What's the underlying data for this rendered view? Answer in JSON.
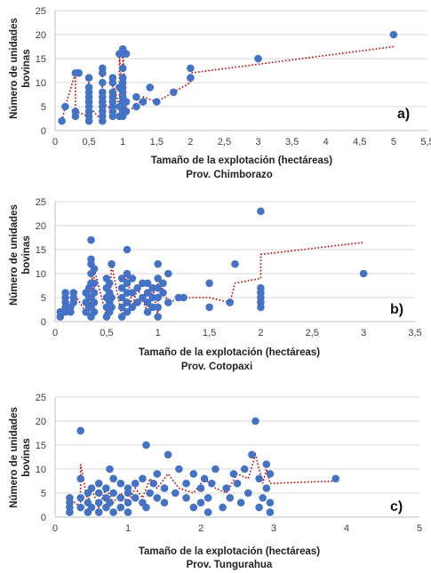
{
  "colors": {
    "point": "#4472C4",
    "trend": "#C00000",
    "grid": "#D9D9D9",
    "axis": "#BFBFBF"
  },
  "chart_data": [
    {
      "type": "scatter",
      "panel_label": "a)",
      "xlabel": "Tamaño de la explotación (hectáreas)",
      "subtitle": "Prov. Chimborazo",
      "ylabel": [
        "Número de unidades",
        "bovinas"
      ],
      "xlim": [
        0,
        5.5
      ],
      "ylim": [
        0,
        25
      ],
      "xticks": [
        0,
        0.5,
        1,
        1.5,
        2,
        2.5,
        3,
        3.5,
        4,
        4.5,
        5,
        5.5
      ],
      "xtick_labels": [
        "0",
        "0,5",
        "1",
        "1,5",
        "2",
        "2,5",
        "3",
        "3,5",
        "4",
        "4,5",
        "5",
        "5,5"
      ],
      "yticks": [
        0,
        5,
        10,
        15,
        20,
        25
      ],
      "ytick_labels": [
        "0",
        "5",
        "10",
        "15",
        "20",
        "25"
      ],
      "grid": "horizontal",
      "points": [
        [
          0.1,
          2
        ],
        [
          0.15,
          5
        ],
        [
          0.3,
          3
        ],
        [
          0.3,
          4
        ],
        [
          0.3,
          12
        ],
        [
          0.35,
          12
        ],
        [
          0.5,
          2
        ],
        [
          0.5,
          3
        ],
        [
          0.5,
          4
        ],
        [
          0.5,
          5
        ],
        [
          0.5,
          6
        ],
        [
          0.5,
          7
        ],
        [
          0.5,
          8
        ],
        [
          0.5,
          9
        ],
        [
          0.5,
          11
        ],
        [
          0.7,
          2
        ],
        [
          0.7,
          3
        ],
        [
          0.7,
          4
        ],
        [
          0.7,
          5
        ],
        [
          0.7,
          6
        ],
        [
          0.7,
          7
        ],
        [
          0.7,
          8
        ],
        [
          0.7,
          10
        ],
        [
          0.7,
          12
        ],
        [
          0.7,
          13
        ],
        [
          0.85,
          3
        ],
        [
          0.85,
          4
        ],
        [
          0.85,
          5
        ],
        [
          0.85,
          6
        ],
        [
          0.85,
          7
        ],
        [
          0.85,
          8
        ],
        [
          0.85,
          10
        ],
        [
          0.85,
          11
        ],
        [
          0.95,
          3
        ],
        [
          0.95,
          5
        ],
        [
          0.95,
          9
        ],
        [
          0.95,
          16
        ],
        [
          1,
          3
        ],
        [
          1,
          4
        ],
        [
          1,
          5
        ],
        [
          1,
          6
        ],
        [
          1,
          7
        ],
        [
          1,
          8
        ],
        [
          1,
          9
        ],
        [
          1,
          10
        ],
        [
          1,
          11
        ],
        [
          1,
          13
        ],
        [
          1,
          16
        ],
        [
          1,
          17
        ],
        [
          1.05,
          4
        ],
        [
          1.05,
          6
        ],
        [
          1.05,
          16
        ],
        [
          1.2,
          5
        ],
        [
          1.2,
          7
        ],
        [
          1.3,
          6
        ],
        [
          1.4,
          9
        ],
        [
          1.5,
          6
        ],
        [
          1.75,
          8
        ],
        [
          2,
          11
        ],
        [
          2,
          13
        ],
        [
          3,
          15
        ],
        [
          5,
          20
        ]
      ],
      "trend": [
        [
          0.1,
          2
        ],
        [
          0.15,
          5
        ],
        [
          0.3,
          12
        ],
        [
          0.3,
          4
        ],
        [
          0.5,
          3
        ],
        [
          0.5,
          11
        ],
        [
          0.5,
          5
        ],
        [
          0.7,
          2
        ],
        [
          0.7,
          13
        ],
        [
          0.7,
          6
        ],
        [
          0.85,
          4
        ],
        [
          0.85,
          10
        ],
        [
          0.95,
          5
        ],
        [
          0.95,
          16
        ],
        [
          1,
          3
        ],
        [
          1,
          17
        ],
        [
          1.05,
          4
        ],
        [
          1.2,
          5
        ],
        [
          1.3,
          7
        ],
        [
          1.5,
          6
        ],
        [
          1.75,
          8
        ],
        [
          2,
          10
        ],
        [
          2,
          12
        ],
        [
          5,
          17.5
        ]
      ]
    },
    {
      "type": "scatter",
      "panel_label": "b)",
      "xlabel": "Tamaño de la explotación (hectáreas)",
      "subtitle": "Prov. Cotopaxi",
      "ylabel": [
        "Número de unidades",
        "bovinas"
      ],
      "xlim": [
        0,
        3.5
      ],
      "ylim": [
        0,
        25
      ],
      "xticks": [
        0,
        0.5,
        1,
        1.5,
        2,
        2.5,
        3,
        3.5
      ],
      "xtick_labels": [
        "0",
        "0,5",
        "1",
        "1,5",
        "2",
        "2,5",
        "3",
        "3,5"
      ],
      "yticks": [
        0,
        5,
        10,
        15,
        20,
        25
      ],
      "ytick_labels": [
        "0",
        "5",
        "10",
        "15",
        "20",
        "25"
      ],
      "grid": "horizontal",
      "points": [
        [
          0.05,
          1
        ],
        [
          0.05,
          2
        ],
        [
          0.1,
          2
        ],
        [
          0.1,
          3
        ],
        [
          0.1,
          4
        ],
        [
          0.1,
          5
        ],
        [
          0.1,
          6
        ],
        [
          0.15,
          2
        ],
        [
          0.15,
          3
        ],
        [
          0.18,
          4
        ],
        [
          0.18,
          5
        ],
        [
          0.18,
          6
        ],
        [
          0.3,
          2
        ],
        [
          0.3,
          4
        ],
        [
          0.3,
          6
        ],
        [
          0.33,
          3
        ],
        [
          0.33,
          5
        ],
        [
          0.33,
          7
        ],
        [
          0.35,
          1
        ],
        [
          0.35,
          3
        ],
        [
          0.35,
          5
        ],
        [
          0.35,
          8
        ],
        [
          0.35,
          10
        ],
        [
          0.35,
          12
        ],
        [
          0.35,
          13
        ],
        [
          0.35,
          17
        ],
        [
          0.38,
          2
        ],
        [
          0.38,
          4
        ],
        [
          0.38,
          6
        ],
        [
          0.38,
          8
        ],
        [
          0.38,
          11
        ],
        [
          0.5,
          1
        ],
        [
          0.5,
          3
        ],
        [
          0.5,
          5
        ],
        [
          0.5,
          7
        ],
        [
          0.5,
          9
        ],
        [
          0.53,
          2
        ],
        [
          0.53,
          4
        ],
        [
          0.53,
          6
        ],
        [
          0.53,
          8
        ],
        [
          0.55,
          3
        ],
        [
          0.55,
          5
        ],
        [
          0.55,
          12
        ],
        [
          0.65,
          1
        ],
        [
          0.65,
          3
        ],
        [
          0.65,
          5
        ],
        [
          0.65,
          7
        ],
        [
          0.65,
          9
        ],
        [
          0.7,
          2
        ],
        [
          0.7,
          4
        ],
        [
          0.7,
          6
        ],
        [
          0.7,
          8
        ],
        [
          0.7,
          10
        ],
        [
          0.7,
          15
        ],
        [
          0.75,
          3
        ],
        [
          0.75,
          6
        ],
        [
          0.75,
          9
        ],
        [
          0.8,
          4
        ],
        [
          0.8,
          7
        ],
        [
          0.85,
          5
        ],
        [
          0.85,
          8
        ],
        [
          0.9,
          2
        ],
        [
          0.9,
          4
        ],
        [
          0.9,
          6
        ],
        [
          0.9,
          8
        ],
        [
          0.95,
          3
        ],
        [
          0.95,
          5
        ],
        [
          0.95,
          7
        ],
        [
          1,
          1
        ],
        [
          1,
          3
        ],
        [
          1,
          5
        ],
        [
          1,
          7
        ],
        [
          1,
          9
        ],
        [
          1,
          12
        ],
        [
          1.05,
          6
        ],
        [
          1.05,
          8
        ],
        [
          1.1,
          4
        ],
        [
          1.1,
          10
        ],
        [
          1.2,
          5
        ],
        [
          1.25,
          5
        ],
        [
          1.5,
          3
        ],
        [
          1.5,
          8
        ],
        [
          1.7,
          4
        ],
        [
          1.75,
          12
        ],
        [
          2,
          3
        ],
        [
          2,
          4
        ],
        [
          2,
          5
        ],
        [
          2,
          6
        ],
        [
          2,
          7
        ],
        [
          2,
          23
        ],
        [
          3,
          10
        ]
      ],
      "trend": [
        [
          0.05,
          1
        ],
        [
          0.1,
          6
        ],
        [
          0.15,
          2
        ],
        [
          0.18,
          6
        ],
        [
          0.3,
          2
        ],
        [
          0.33,
          7
        ],
        [
          0.35,
          1
        ],
        [
          0.35,
          13
        ],
        [
          0.38,
          2
        ],
        [
          0.38,
          11
        ],
        [
          0.5,
          1
        ],
        [
          0.5,
          9
        ],
        [
          0.53,
          2
        ],
        [
          0.55,
          12
        ],
        [
          0.65,
          1
        ],
        [
          0.7,
          10
        ],
        [
          0.75,
          3
        ],
        [
          0.8,
          7
        ],
        [
          0.9,
          2
        ],
        [
          0.95,
          7
        ],
        [
          1,
          1
        ],
        [
          1,
          9
        ],
        [
          1.1,
          4
        ],
        [
          1.25,
          5
        ],
        [
          1.5,
          5
        ],
        [
          1.7,
          4
        ],
        [
          1.75,
          8
        ],
        [
          2,
          9
        ],
        [
          2,
          14
        ],
        [
          3,
          16.5
        ]
      ]
    },
    {
      "type": "scatter",
      "panel_label": "c)",
      "xlabel": "Tamaño de la explotación (hectáreas)",
      "subtitle": "Prov. Tungurahua",
      "ylabel": [
        "Número de unidades",
        "bovinas"
      ],
      "xlim": [
        0,
        5
      ],
      "ylim": [
        0,
        25
      ],
      "xticks": [
        0,
        1,
        2,
        3,
        4,
        5
      ],
      "xtick_labels": [
        "0",
        "1",
        "2",
        "3",
        "4",
        "5"
      ],
      "yticks": [
        0,
        5,
        10,
        15,
        20,
        25
      ],
      "ytick_labels": [
        "0",
        "5",
        "10",
        "15",
        "20",
        "25"
      ],
      "grid": "horizontal",
      "points": [
        [
          0.2,
          1
        ],
        [
          0.2,
          2
        ],
        [
          0.2,
          3
        ],
        [
          0.2,
          4
        ],
        [
          0.35,
          2
        ],
        [
          0.35,
          4
        ],
        [
          0.35,
          8
        ],
        [
          0.35,
          18
        ],
        [
          0.45,
          1
        ],
        [
          0.45,
          3
        ],
        [
          0.45,
          5
        ],
        [
          0.5,
          2
        ],
        [
          0.5,
          6
        ],
        [
          0.6,
          1
        ],
        [
          0.6,
          3
        ],
        [
          0.6,
          5
        ],
        [
          0.6,
          7
        ],
        [
          0.7,
          2
        ],
        [
          0.7,
          4
        ],
        [
          0.7,
          6
        ],
        [
          0.75,
          3
        ],
        [
          0.75,
          10
        ],
        [
          0.8,
          1
        ],
        [
          0.8,
          5
        ],
        [
          0.8,
          8
        ],
        [
          0.9,
          2
        ],
        [
          0.9,
          4
        ],
        [
          0.9,
          7
        ],
        [
          1,
          1
        ],
        [
          1,
          3
        ],
        [
          1,
          5
        ],
        [
          1,
          6
        ],
        [
          1.1,
          4
        ],
        [
          1.1,
          7
        ],
        [
          1.2,
          3
        ],
        [
          1.2,
          8
        ],
        [
          1.25,
          2
        ],
        [
          1.25,
          15
        ],
        [
          1.3,
          5
        ],
        [
          1.35,
          7
        ],
        [
          1.4,
          4
        ],
        [
          1.4,
          9
        ],
        [
          1.5,
          3
        ],
        [
          1.5,
          6
        ],
        [
          1.55,
          13
        ],
        [
          1.65,
          5
        ],
        [
          1.7,
          10
        ],
        [
          1.8,
          4
        ],
        [
          1.8,
          7
        ],
        [
          1.9,
          2
        ],
        [
          1.9,
          9
        ],
        [
          2,
          3
        ],
        [
          2,
          6
        ],
        [
          2.05,
          8
        ],
        [
          2.1,
          1
        ],
        [
          2.1,
          4
        ],
        [
          2.15,
          7
        ],
        [
          2.2,
          10
        ],
        [
          2.3,
          2
        ],
        [
          2.35,
          6
        ],
        [
          2.4,
          4
        ],
        [
          2.45,
          9
        ],
        [
          2.5,
          7
        ],
        [
          2.55,
          3
        ],
        [
          2.6,
          10
        ],
        [
          2.65,
          5
        ],
        [
          2.7,
          13
        ],
        [
          2.75,
          20
        ],
        [
          2.8,
          2
        ],
        [
          2.8,
          8
        ],
        [
          2.85,
          4
        ],
        [
          2.9,
          11
        ],
        [
          2.9,
          6
        ],
        [
          2.95,
          1
        ],
        [
          2.95,
          3
        ],
        [
          2.95,
          9
        ],
        [
          3.85,
          8
        ]
      ],
      "trend": [
        [
          0.2,
          1
        ],
        [
          0.2,
          4
        ],
        [
          0.35,
          2
        ],
        [
          0.35,
          11
        ],
        [
          0.45,
          3
        ],
        [
          0.5,
          6
        ],
        [
          0.6,
          2
        ],
        [
          0.7,
          6
        ],
        [
          0.8,
          3
        ],
        [
          0.9,
          5
        ],
        [
          1,
          3
        ],
        [
          1.1,
          6
        ],
        [
          1.2,
          4
        ],
        [
          1.3,
          8
        ],
        [
          1.4,
          6
        ],
        [
          1.55,
          9
        ],
        [
          1.7,
          6
        ],
        [
          1.9,
          5
        ],
        [
          2.05,
          8
        ],
        [
          2.2,
          6
        ],
        [
          2.35,
          5
        ],
        [
          2.5,
          9
        ],
        [
          2.65,
          8
        ],
        [
          2.75,
          13
        ],
        [
          2.85,
          7
        ],
        [
          2.9,
          10
        ],
        [
          2.95,
          7
        ],
        [
          3.85,
          7.5
        ]
      ]
    }
  ]
}
